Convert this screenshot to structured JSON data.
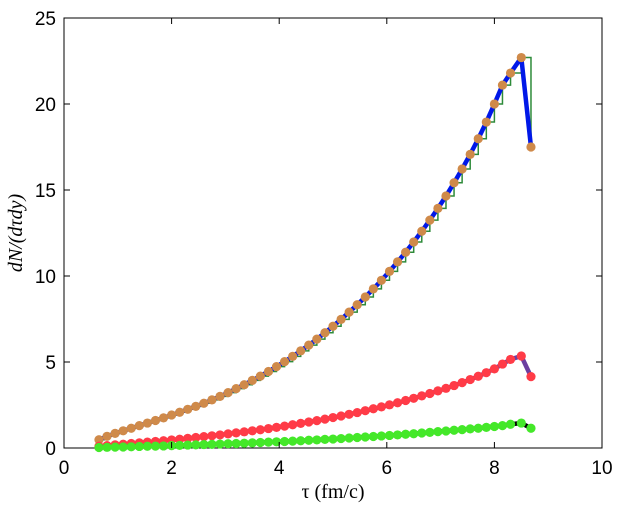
{
  "chart_data": {
    "type": "line",
    "xlabel": "τ (fm/c)",
    "ylabel": "dN/(dτdy)",
    "xlim": [
      0,
      10
    ],
    "ylim": [
      0,
      25
    ],
    "xticks": [
      "0",
      "2",
      "4",
      "6",
      "8",
      "10"
    ],
    "yticks": [
      "0",
      "5",
      "10",
      "15",
      "20",
      "25"
    ],
    "grid": false,
    "legend": "none",
    "series": [
      {
        "color_line": "#0018e8",
        "color_marker": "#cf8a4a",
        "color_step": "#2e8b3a",
        "x": [
          0.65,
          0.8,
          0.95,
          1.1,
          1.25,
          1.4,
          1.55,
          1.7,
          1.85,
          2.0,
          2.15,
          2.3,
          2.45,
          2.6,
          2.75,
          2.9,
          3.05,
          3.2,
          3.35,
          3.5,
          3.65,
          3.8,
          3.95,
          4.1,
          4.25,
          4.4,
          4.55,
          4.7,
          4.85,
          5.0,
          5.15,
          5.3,
          5.45,
          5.6,
          5.75,
          5.9,
          6.05,
          6.2,
          6.35,
          6.5,
          6.65,
          6.8,
          6.95,
          7.1,
          7.25,
          7.4,
          7.55,
          7.7,
          7.85,
          8.0,
          8.15,
          8.3,
          8.5,
          8.68
        ],
        "y": [
          0.48,
          0.68,
          0.85,
          1.0,
          1.15,
          1.3,
          1.45,
          1.6,
          1.75,
          1.92,
          2.08,
          2.25,
          2.42,
          2.6,
          2.8,
          3.0,
          3.22,
          3.45,
          3.68,
          3.93,
          4.18,
          4.45,
          4.73,
          5.02,
          5.33,
          5.65,
          5.98,
          6.33,
          6.7,
          7.08,
          7.48,
          7.9,
          8.33,
          8.78,
          9.25,
          9.75,
          10.27,
          10.82,
          11.38,
          11.98,
          12.6,
          13.25,
          13.93,
          14.65,
          15.42,
          16.22,
          17.07,
          17.98,
          18.95,
          20.0,
          21.1,
          21.8,
          22.7,
          17.5
        ]
      },
      {
        "color_line": "#6b3fa0",
        "color_marker": "#ff3b47",
        "x": [
          0.65,
          0.8,
          0.95,
          1.1,
          1.25,
          1.4,
          1.55,
          1.7,
          1.85,
          2.0,
          2.15,
          2.3,
          2.45,
          2.6,
          2.75,
          2.9,
          3.05,
          3.2,
          3.35,
          3.5,
          3.65,
          3.8,
          3.95,
          4.1,
          4.25,
          4.4,
          4.55,
          4.7,
          4.85,
          5.0,
          5.15,
          5.3,
          5.45,
          5.6,
          5.75,
          5.9,
          6.05,
          6.2,
          6.35,
          6.5,
          6.65,
          6.8,
          6.95,
          7.1,
          7.25,
          7.4,
          7.55,
          7.7,
          7.85,
          8.0,
          8.15,
          8.3,
          8.5,
          8.68
        ],
        "y": [
          0.1,
          0.14,
          0.18,
          0.22,
          0.26,
          0.3,
          0.34,
          0.38,
          0.42,
          0.47,
          0.51,
          0.56,
          0.61,
          0.66,
          0.71,
          0.76,
          0.82,
          0.88,
          0.94,
          1.0,
          1.06,
          1.13,
          1.2,
          1.27,
          1.35,
          1.43,
          1.51,
          1.59,
          1.68,
          1.77,
          1.86,
          1.96,
          2.06,
          2.17,
          2.28,
          2.39,
          2.51,
          2.63,
          2.76,
          2.89,
          3.03,
          3.17,
          3.32,
          3.47,
          3.63,
          3.8,
          3.98,
          4.17,
          4.38,
          4.6,
          4.88,
          5.15,
          5.35,
          4.15
        ]
      },
      {
        "color_line": "#000000",
        "color_marker": "#44e829",
        "x": [
          0.65,
          0.8,
          0.95,
          1.1,
          1.25,
          1.4,
          1.55,
          1.7,
          1.85,
          2.0,
          2.15,
          2.3,
          2.45,
          2.6,
          2.75,
          2.9,
          3.05,
          3.2,
          3.35,
          3.5,
          3.65,
          3.8,
          3.95,
          4.1,
          4.25,
          4.4,
          4.55,
          4.7,
          4.85,
          5.0,
          5.15,
          5.3,
          5.45,
          5.6,
          5.75,
          5.9,
          6.05,
          6.2,
          6.35,
          6.5,
          6.65,
          6.8,
          6.95,
          7.1,
          7.25,
          7.4,
          7.55,
          7.7,
          7.85,
          8.0,
          8.15,
          8.3,
          8.5,
          8.68
        ],
        "y": [
          0.03,
          0.04,
          0.05,
          0.06,
          0.07,
          0.09,
          0.1,
          0.11,
          0.12,
          0.14,
          0.15,
          0.17,
          0.18,
          0.2,
          0.21,
          0.23,
          0.25,
          0.26,
          0.28,
          0.3,
          0.32,
          0.34,
          0.36,
          0.38,
          0.4,
          0.42,
          0.45,
          0.47,
          0.5,
          0.52,
          0.55,
          0.58,
          0.61,
          0.64,
          0.67,
          0.7,
          0.73,
          0.76,
          0.8,
          0.83,
          0.87,
          0.91,
          0.95,
          0.99,
          1.03,
          1.07,
          1.11,
          1.15,
          1.2,
          1.25,
          1.3,
          1.38,
          1.45,
          1.15
        ]
      }
    ]
  }
}
